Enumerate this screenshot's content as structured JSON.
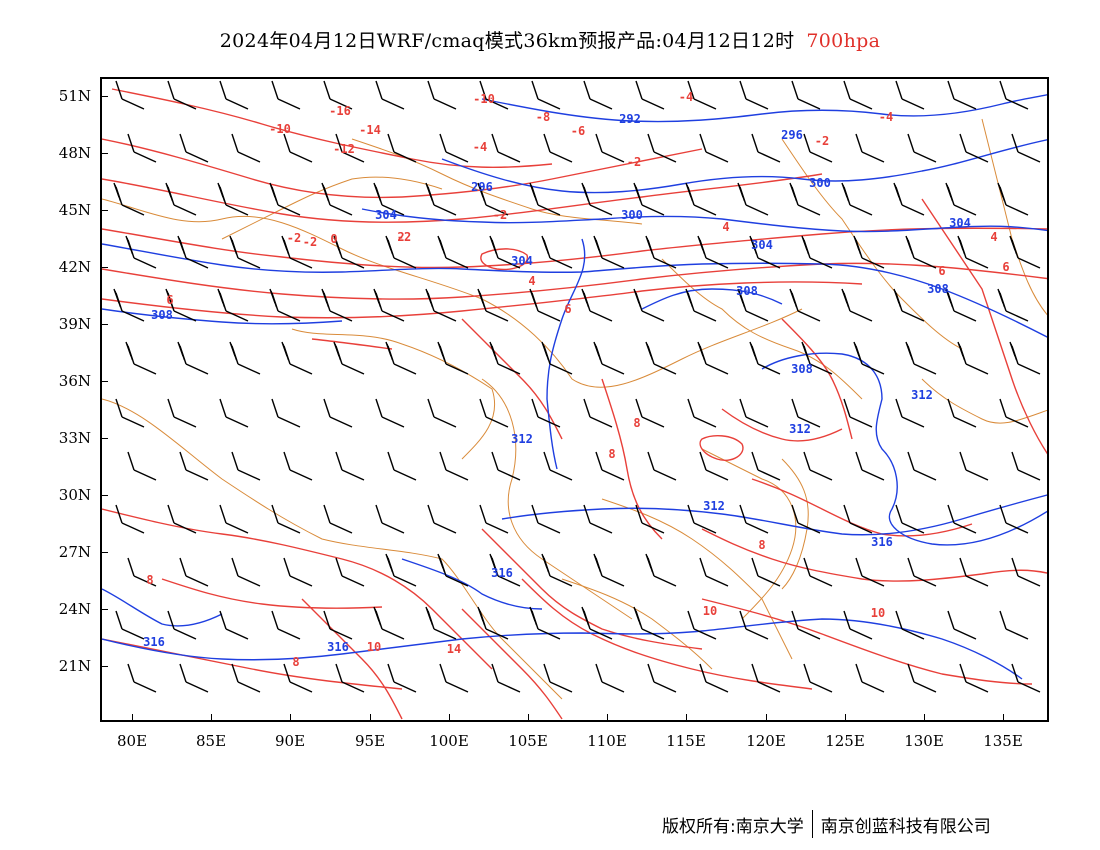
{
  "title": {
    "main": "2024年04月12日WRF/cmaq模式36km预报产品:04月12日12时",
    "level": "700hpa"
  },
  "axes": {
    "lat_labels": [
      "51N",
      "48N",
      "45N",
      "42N",
      "39N",
      "36N",
      "33N",
      "30N",
      "27N",
      "24N",
      "21N"
    ],
    "lon_labels": [
      "80E",
      "85E",
      "90E",
      "95E",
      "100E",
      "105E",
      "110E",
      "115E",
      "120E",
      "125E",
      "130E",
      "135E"
    ]
  },
  "footer": {
    "copyright": "版权所有:南京大学",
    "company": "南京创蓝科技有限公司"
  },
  "colors": {
    "temperature": "#e8403a",
    "height": "#1f3fe0",
    "border": "#d98b3a",
    "wind": "#000000"
  },
  "height_labels": [
    "292",
    "296",
    "296",
    "300",
    "300",
    "304",
    "304",
    "304",
    "304",
    "308",
    "308",
    "308",
    "308",
    "312",
    "312",
    "312",
    "312",
    "316",
    "316",
    "316",
    "316"
  ],
  "temp_labels": [
    "-16",
    "-14",
    "-12",
    "-10",
    "-10",
    "-8",
    "-6",
    "-4",
    "-4",
    "-4",
    "-2",
    "-2",
    "-2",
    "-2",
    "-2",
    "0",
    "-2",
    "2",
    "4",
    "4",
    "4",
    "6",
    "6",
    "6",
    "6",
    "8",
    "8",
    "8",
    "8",
    "8",
    "10",
    "10",
    "10",
    "14"
  ]
}
